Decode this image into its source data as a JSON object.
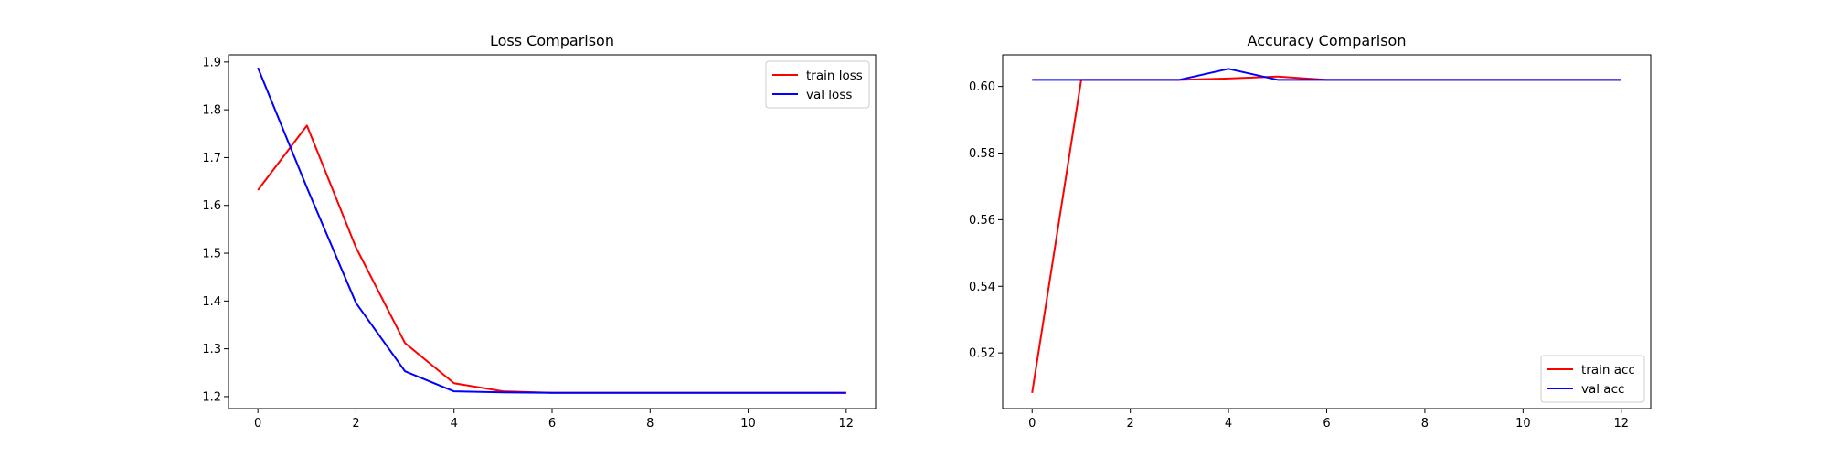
{
  "chart_data": [
    {
      "type": "line",
      "title": "Loss Comparison",
      "xlabel": "",
      "ylabel": "",
      "xlim": [
        -0.6,
        12.6
      ],
      "ylim": [
        1.175,
        1.915
      ],
      "xticks": [
        0,
        2,
        4,
        6,
        8,
        10,
        12
      ],
      "yticks": [
        1.2,
        1.3,
        1.4,
        1.5,
        1.6,
        1.7,
        1.8,
        1.9
      ],
      "ytick_format": "1dp",
      "legend_position": "upper right",
      "grid": false,
      "x": [
        0,
        1,
        2,
        3,
        4,
        5,
        6,
        7,
        8,
        9,
        10,
        11,
        12
      ],
      "series": [
        {
          "name": "train loss",
          "color": "#ff0000",
          "values": [
            1.632,
            1.767,
            1.512,
            1.312,
            1.228,
            1.211,
            1.208,
            1.208,
            1.208,
            1.208,
            1.208,
            1.208,
            1.208
          ]
        },
        {
          "name": "val loss",
          "color": "#0000ff",
          "values": [
            1.888,
            1.637,
            1.396,
            1.253,
            1.211,
            1.209,
            1.208,
            1.208,
            1.208,
            1.208,
            1.208,
            1.208,
            1.208
          ]
        }
      ]
    },
    {
      "type": "line",
      "title": "Accuracy Comparison",
      "xlabel": "",
      "ylabel": "",
      "xlim": [
        -0.6,
        12.6
      ],
      "ylim": [
        0.5033,
        0.6095
      ],
      "xticks": [
        0,
        2,
        4,
        6,
        8,
        10,
        12
      ],
      "yticks": [
        0.52,
        0.54,
        0.56,
        0.58,
        0.6
      ],
      "ytick_format": "2dp",
      "legend_position": "lower right",
      "grid": false,
      "x": [
        0,
        1,
        2,
        3,
        4,
        5,
        6,
        7,
        8,
        9,
        10,
        11,
        12
      ],
      "series": [
        {
          "name": "train acc",
          "color": "#ff0000",
          "values": [
            0.508,
            0.602,
            0.602,
            0.602,
            0.6024,
            0.603,
            0.602,
            0.602,
            0.602,
            0.602,
            0.602,
            0.602,
            0.602
          ]
        },
        {
          "name": "val acc",
          "color": "#0000ff",
          "values": [
            0.602,
            0.602,
            0.602,
            0.602,
            0.6053,
            0.602,
            0.602,
            0.602,
            0.602,
            0.602,
            0.602,
            0.602,
            0.602
          ]
        }
      ]
    }
  ]
}
